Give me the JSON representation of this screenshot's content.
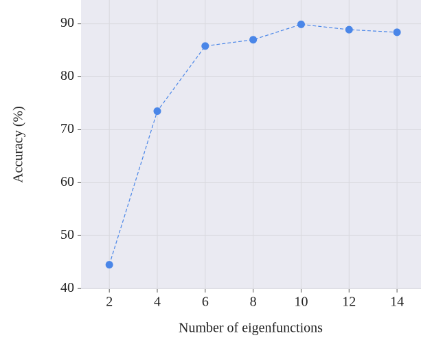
{
  "chart_data": {
    "type": "line",
    "x_label": "Number of eigenfunctions",
    "y_label": "Accuracy (%)",
    "x": [
      2,
      4,
      6,
      8,
      10,
      12,
      14
    ],
    "values": [
      44.5,
      73.5,
      85.8,
      87.0,
      89.9,
      88.9,
      88.4
    ],
    "color": "#4a86e8",
    "xlim": [
      0.82,
      15.0
    ],
    "ylim": [
      39.9,
      94.5
    ],
    "xticks": [
      2,
      4,
      6,
      8,
      10,
      12,
      14
    ],
    "yticks": [
      40,
      50,
      60,
      70,
      80,
      90
    ],
    "grid": true
  }
}
